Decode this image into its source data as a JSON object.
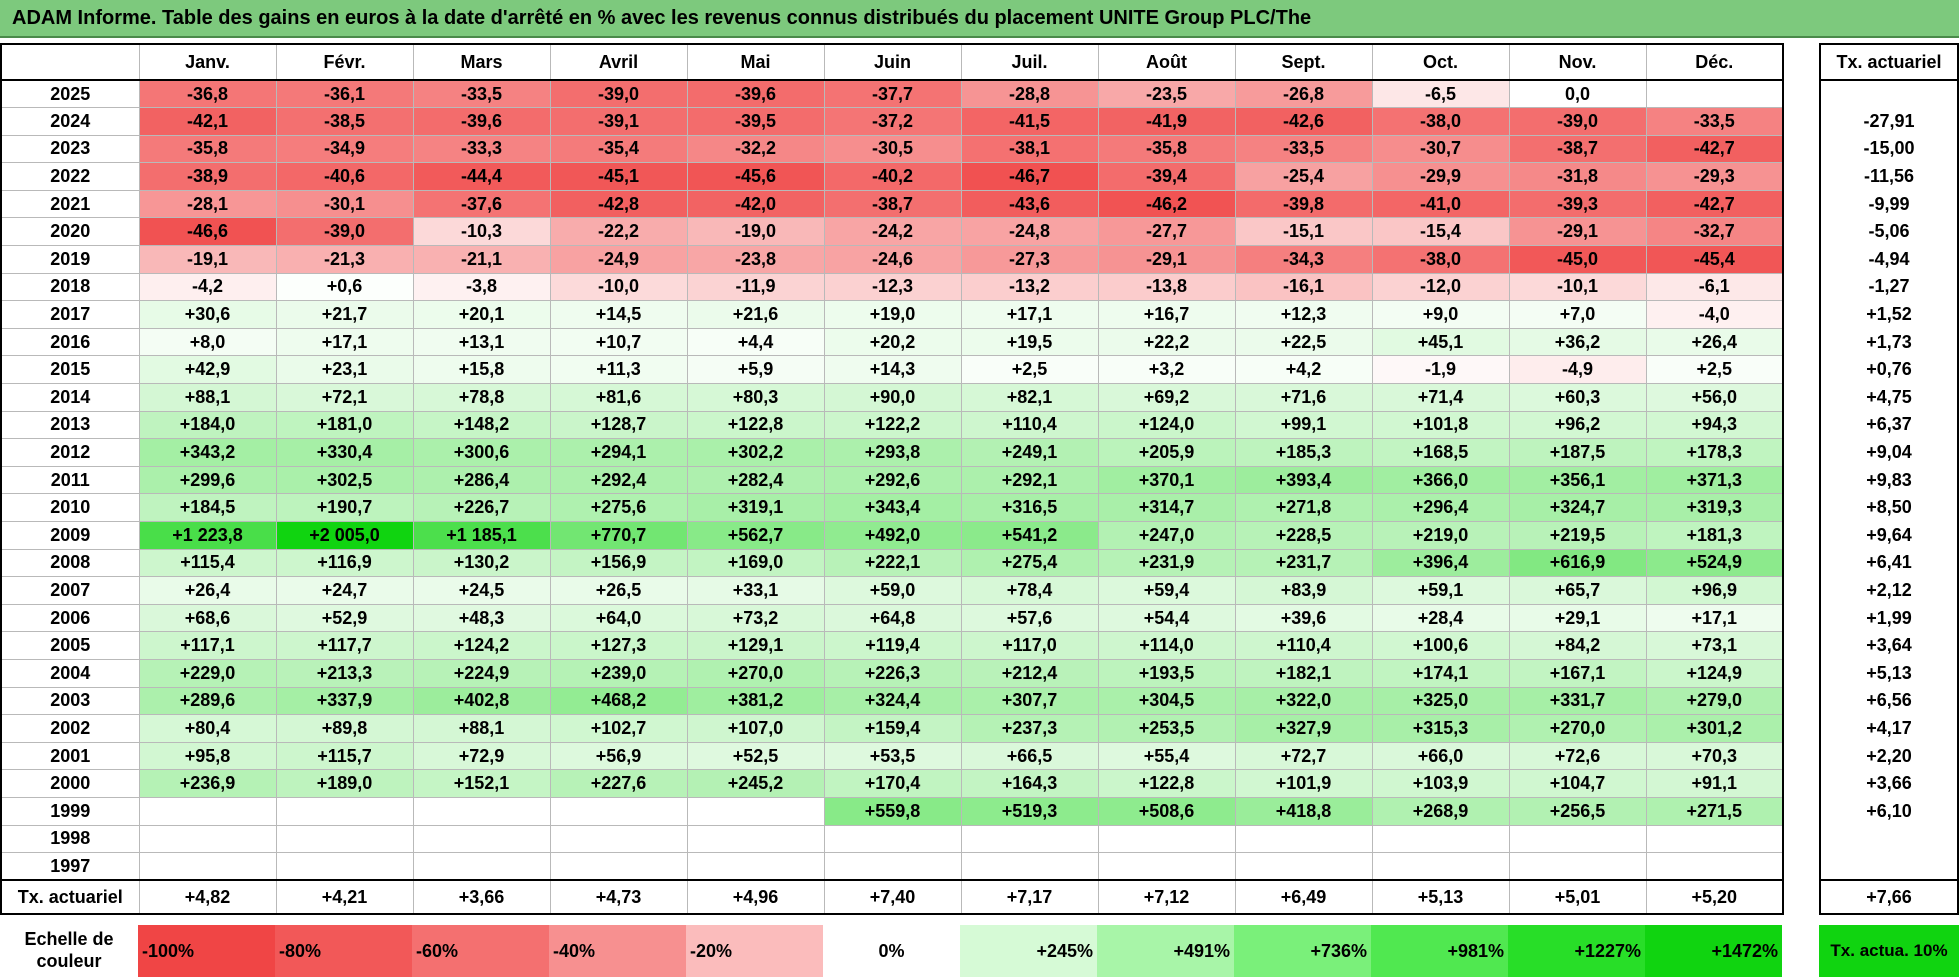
{
  "title": "ADAM Informe. Table des gains en euros à la date d'arrêté en % avec les revenus connus distribués du placement UNITE Group PLC/The",
  "months": [
    "Janv.",
    "Févr.",
    "Mars",
    "Avril",
    "Mai",
    "Juin",
    "Juil.",
    "Août",
    "Sept.",
    "Oct.",
    "Nov.",
    "Déc."
  ],
  "side_header": "Tx. actuariel",
  "rows": [
    {
      "year": "2025",
      "values": [
        "-36,8",
        "-36,1",
        "-33,5",
        "-39,0",
        "-39,6",
        "-37,7",
        "-28,8",
        "-23,5",
        "-26,8",
        "-6,5",
        "0,0",
        ""
      ],
      "rate": ""
    },
    {
      "year": "2024",
      "values": [
        "-42,1",
        "-38,5",
        "-39,6",
        "-39,1",
        "-39,5",
        "-37,2",
        "-41,5",
        "-41,9",
        "-42,6",
        "-38,0",
        "-39,0",
        "-33,5"
      ],
      "rate": "-27,91"
    },
    {
      "year": "2023",
      "values": [
        "-35,8",
        "-34,9",
        "-33,3",
        "-35,4",
        "-32,2",
        "-30,5",
        "-38,1",
        "-35,8",
        "-33,5",
        "-30,7",
        "-38,7",
        "-42,7"
      ],
      "rate": "-15,00"
    },
    {
      "year": "2022",
      "values": [
        "-38,9",
        "-40,6",
        "-44,4",
        "-45,1",
        "-45,6",
        "-40,2",
        "-46,7",
        "-39,4",
        "-25,4",
        "-29,9",
        "-31,8",
        "-29,3"
      ],
      "rate": "-11,56"
    },
    {
      "year": "2021",
      "values": [
        "-28,1",
        "-30,1",
        "-37,6",
        "-42,8",
        "-42,0",
        "-38,7",
        "-43,6",
        "-46,2",
        "-39,8",
        "-41,0",
        "-39,3",
        "-42,7"
      ],
      "rate": "-9,99"
    },
    {
      "year": "2020",
      "values": [
        "-46,6",
        "-39,0",
        "-10,3",
        "-22,2",
        "-19,0",
        "-24,2",
        "-24,8",
        "-27,7",
        "-15,1",
        "-15,4",
        "-29,1",
        "-32,7"
      ],
      "rate": "-5,06"
    },
    {
      "year": "2019",
      "values": [
        "-19,1",
        "-21,3",
        "-21,1",
        "-24,9",
        "-23,8",
        "-24,6",
        "-27,3",
        "-29,1",
        "-34,3",
        "-38,0",
        "-45,0",
        "-45,4"
      ],
      "rate": "-4,94"
    },
    {
      "year": "2018",
      "values": [
        "-4,2",
        "+0,6",
        "-3,8",
        "-10,0",
        "-11,9",
        "-12,3",
        "-13,2",
        "-13,8",
        "-16,1",
        "-12,0",
        "-10,1",
        "-6,1"
      ],
      "rate": "-1,27"
    },
    {
      "year": "2017",
      "values": [
        "+30,6",
        "+21,7",
        "+20,1",
        "+14,5",
        "+21,6",
        "+19,0",
        "+17,1",
        "+16,7",
        "+12,3",
        "+9,0",
        "+7,0",
        "-4,0"
      ],
      "rate": "+1,52"
    },
    {
      "year": "2016",
      "values": [
        "+8,0",
        "+17,1",
        "+13,1",
        "+10,7",
        "+4,4",
        "+20,2",
        "+19,5",
        "+22,2",
        "+22,5",
        "+45,1",
        "+36,2",
        "+26,4"
      ],
      "rate": "+1,73"
    },
    {
      "year": "2015",
      "values": [
        "+42,9",
        "+23,1",
        "+15,8",
        "+11,3",
        "+5,9",
        "+14,3",
        "+2,5",
        "+3,2",
        "+4,2",
        "-1,9",
        "-4,9",
        "+2,5"
      ],
      "rate": "+0,76"
    },
    {
      "year": "2014",
      "values": [
        "+88,1",
        "+72,1",
        "+78,8",
        "+81,6",
        "+80,3",
        "+90,0",
        "+82,1",
        "+69,2",
        "+71,6",
        "+71,4",
        "+60,3",
        "+56,0"
      ],
      "rate": "+4,75"
    },
    {
      "year": "2013",
      "values": [
        "+184,0",
        "+181,0",
        "+148,2",
        "+128,7",
        "+122,8",
        "+122,2",
        "+110,4",
        "+124,0",
        "+99,1",
        "+101,8",
        "+96,2",
        "+94,3"
      ],
      "rate": "+6,37"
    },
    {
      "year": "2012",
      "values": [
        "+343,2",
        "+330,4",
        "+300,6",
        "+294,1",
        "+302,2",
        "+293,8",
        "+249,1",
        "+205,9",
        "+185,3",
        "+168,5",
        "+187,5",
        "+178,3"
      ],
      "rate": "+9,04"
    },
    {
      "year": "2011",
      "values": [
        "+299,6",
        "+302,5",
        "+286,4",
        "+292,4",
        "+282,4",
        "+292,6",
        "+292,1",
        "+370,1",
        "+393,4",
        "+366,0",
        "+356,1",
        "+371,3"
      ],
      "rate": "+9,83"
    },
    {
      "year": "2010",
      "values": [
        "+184,5",
        "+190,7",
        "+226,7",
        "+275,6",
        "+319,1",
        "+343,4",
        "+316,5",
        "+314,7",
        "+271,8",
        "+296,4",
        "+324,7",
        "+319,3"
      ],
      "rate": "+8,50"
    },
    {
      "year": "2009",
      "values": [
        "+1 223,8",
        "+2 005,0",
        "+1 185,1",
        "+770,7",
        "+562,7",
        "+492,0",
        "+541,2",
        "+247,0",
        "+228,5",
        "+219,0",
        "+219,5",
        "+181,3"
      ],
      "rate": "+9,64"
    },
    {
      "year": "2008",
      "values": [
        "+115,4",
        "+116,9",
        "+130,2",
        "+156,9",
        "+169,0",
        "+222,1",
        "+275,4",
        "+231,9",
        "+231,7",
        "+396,4",
        "+616,9",
        "+524,9"
      ],
      "rate": "+6,41"
    },
    {
      "year": "2007",
      "values": [
        "+26,4",
        "+24,7",
        "+24,5",
        "+26,5",
        "+33,1",
        "+59,0",
        "+78,4",
        "+59,4",
        "+83,9",
        "+59,1",
        "+65,7",
        "+96,9"
      ],
      "rate": "+2,12"
    },
    {
      "year": "2006",
      "values": [
        "+68,6",
        "+52,9",
        "+48,3",
        "+64,0",
        "+73,2",
        "+64,8",
        "+57,6",
        "+54,4",
        "+39,6",
        "+28,4",
        "+29,1",
        "+17,1"
      ],
      "rate": "+1,99"
    },
    {
      "year": "2005",
      "values": [
        "+117,1",
        "+117,7",
        "+124,2",
        "+127,3",
        "+129,1",
        "+119,4",
        "+117,0",
        "+114,0",
        "+110,4",
        "+100,6",
        "+84,2",
        "+73,1"
      ],
      "rate": "+3,64"
    },
    {
      "year": "2004",
      "values": [
        "+229,0",
        "+213,3",
        "+224,9",
        "+239,0",
        "+270,0",
        "+226,3",
        "+212,4",
        "+193,5",
        "+182,1",
        "+174,1",
        "+167,1",
        "+124,9"
      ],
      "rate": "+5,13"
    },
    {
      "year": "2003",
      "values": [
        "+289,6",
        "+337,9",
        "+402,8",
        "+468,2",
        "+381,2",
        "+324,4",
        "+307,7",
        "+304,5",
        "+322,0",
        "+325,0",
        "+331,7",
        "+279,0"
      ],
      "rate": "+6,56"
    },
    {
      "year": "2002",
      "values": [
        "+80,4",
        "+89,8",
        "+88,1",
        "+102,7",
        "+107,0",
        "+159,4",
        "+237,3",
        "+253,5",
        "+327,9",
        "+315,3",
        "+270,0",
        "+301,2"
      ],
      "rate": "+4,17"
    },
    {
      "year": "2001",
      "values": [
        "+95,8",
        "+115,7",
        "+72,9",
        "+56,9",
        "+52,5",
        "+53,5",
        "+66,5",
        "+55,4",
        "+72,7",
        "+66,0",
        "+72,6",
        "+70,3"
      ],
      "rate": "+2,20"
    },
    {
      "year": "2000",
      "values": [
        "+236,9",
        "+189,0",
        "+152,1",
        "+227,6",
        "+245,2",
        "+170,4",
        "+164,3",
        "+122,8",
        "+101,9",
        "+103,9",
        "+104,7",
        "+91,1"
      ],
      "rate": "+3,66"
    },
    {
      "year": "1999",
      "values": [
        "",
        "",
        "",
        "",
        "",
        "+559,8",
        "+519,3",
        "+508,6",
        "+418,8",
        "+268,9",
        "+256,5",
        "+271,5"
      ],
      "rate": "+6,10"
    },
    {
      "year": "1998",
      "values": [
        "",
        "",
        "",
        "",
        "",
        "",
        "",
        "",
        "",
        "",
        "",
        ""
      ],
      "rate": ""
    },
    {
      "year": "1997",
      "values": [
        "",
        "",
        "",
        "",
        "",
        "",
        "",
        "",
        "",
        "",
        "",
        ""
      ],
      "rate": ""
    }
  ],
  "footer": {
    "label": "Tx. actuariel",
    "values": [
      "+4,82",
      "+4,21",
      "+3,66",
      "+4,73",
      "+4,96",
      "+7,40",
      "+7,17",
      "+7,12",
      "+6,49",
      "+5,13",
      "+5,01",
      "+5,20"
    ],
    "total": "+7,66"
  },
  "legend": {
    "label": "Echelle de couleur",
    "items": [
      {
        "text": "-100%",
        "color": "#f04545",
        "align": "left"
      },
      {
        "text": "-80%",
        "color": "#f25858",
        "align": "left"
      },
      {
        "text": "-60%",
        "color": "#f47070",
        "align": "left"
      },
      {
        "text": "-40%",
        "color": "#f79090",
        "align": "left"
      },
      {
        "text": "-20%",
        "color": "#fbbcbc",
        "align": "left"
      },
      {
        "text": "0%",
        "color": "#ffffff",
        "align": "center"
      },
      {
        "text": "+245%",
        "color": "#d6fad6",
        "align": "right"
      },
      {
        "text": "+491%",
        "color": "#a8f5a8",
        "align": "right"
      },
      {
        "text": "+736%",
        "color": "#7af07a",
        "align": "right"
      },
      {
        "text": "+981%",
        "color": "#50e850",
        "align": "right"
      },
      {
        "text": "+1227%",
        "color": "#28de28",
        "align": "right"
      },
      {
        "text": "+1472%",
        "color": "#10d410",
        "align": "right"
      }
    ],
    "side_text": "Tx. actua. 10%",
    "side_color": "#10d410"
  }
}
